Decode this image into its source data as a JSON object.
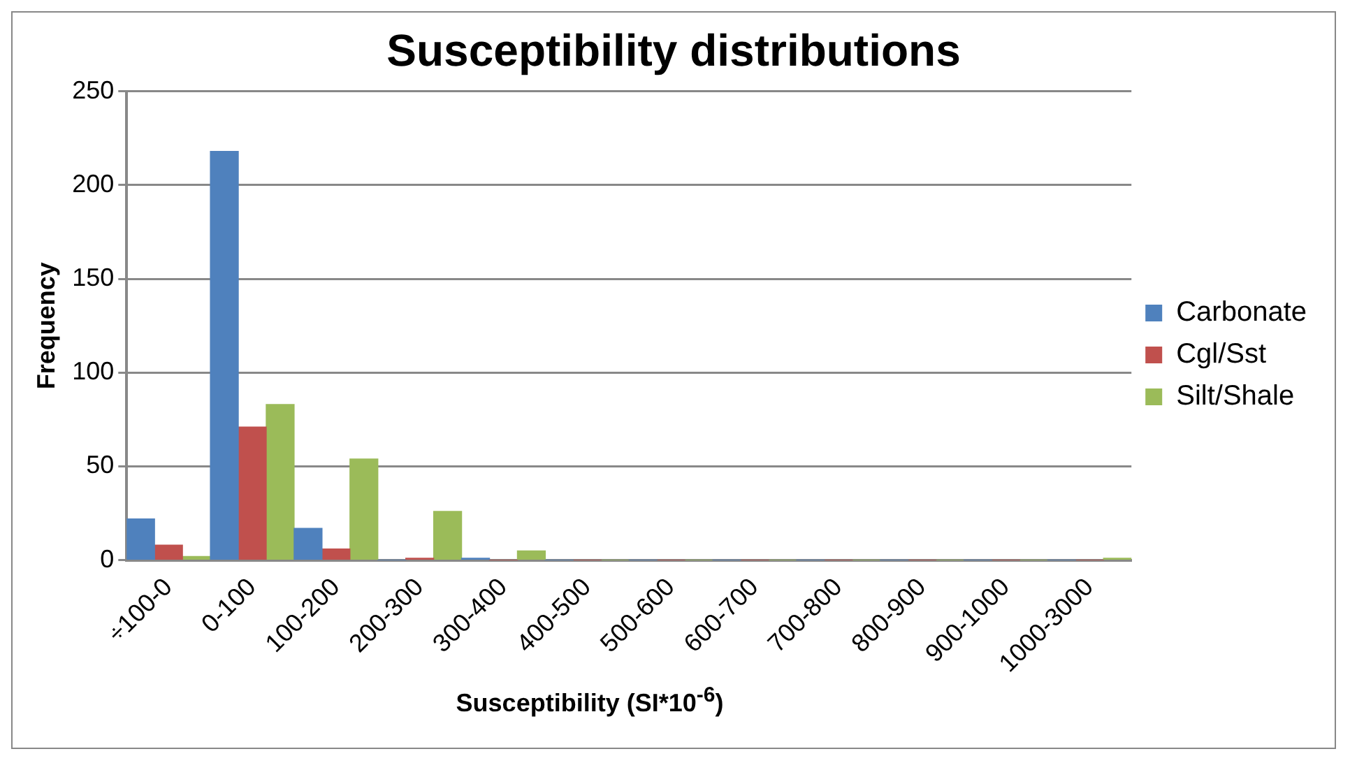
{
  "chart_data": {
    "type": "bar",
    "title": "Susceptibility distributions",
    "xlabel": "Susceptibility (SI*10$^{-6}$)",
    "ylabel": "Frequency",
    "categories": [
      "÷100-0",
      "0-100",
      "100-200",
      "200-300",
      "300-400",
      "400-500",
      "500-600",
      "600-700",
      "700-800",
      "800-900",
      "900-1000",
      "1000-3000"
    ],
    "series": [
      {
        "name": "Carbonate",
        "color": "#4f81bd",
        "values": [
          22,
          218,
          17,
          0,
          1,
          0,
          0,
          0,
          0,
          0,
          0,
          0
        ]
      },
      {
        "name": "Cgl/Sst",
        "color": "#c0504d",
        "values": [
          8,
          71,
          6,
          1,
          0,
          0,
          0,
          0,
          0,
          0,
          0,
          0
        ]
      },
      {
        "name": "Silt/Shale",
        "color": "#9bbb59",
        "values": [
          2,
          83,
          54,
          26,
          5,
          0,
          0,
          0,
          0,
          0,
          0,
          1
        ]
      }
    ],
    "ylim": [
      0,
      250
    ],
    "yticks": [
      0,
      50,
      100,
      150,
      200,
      250
    ],
    "grid": "y",
    "legend": "right"
  }
}
